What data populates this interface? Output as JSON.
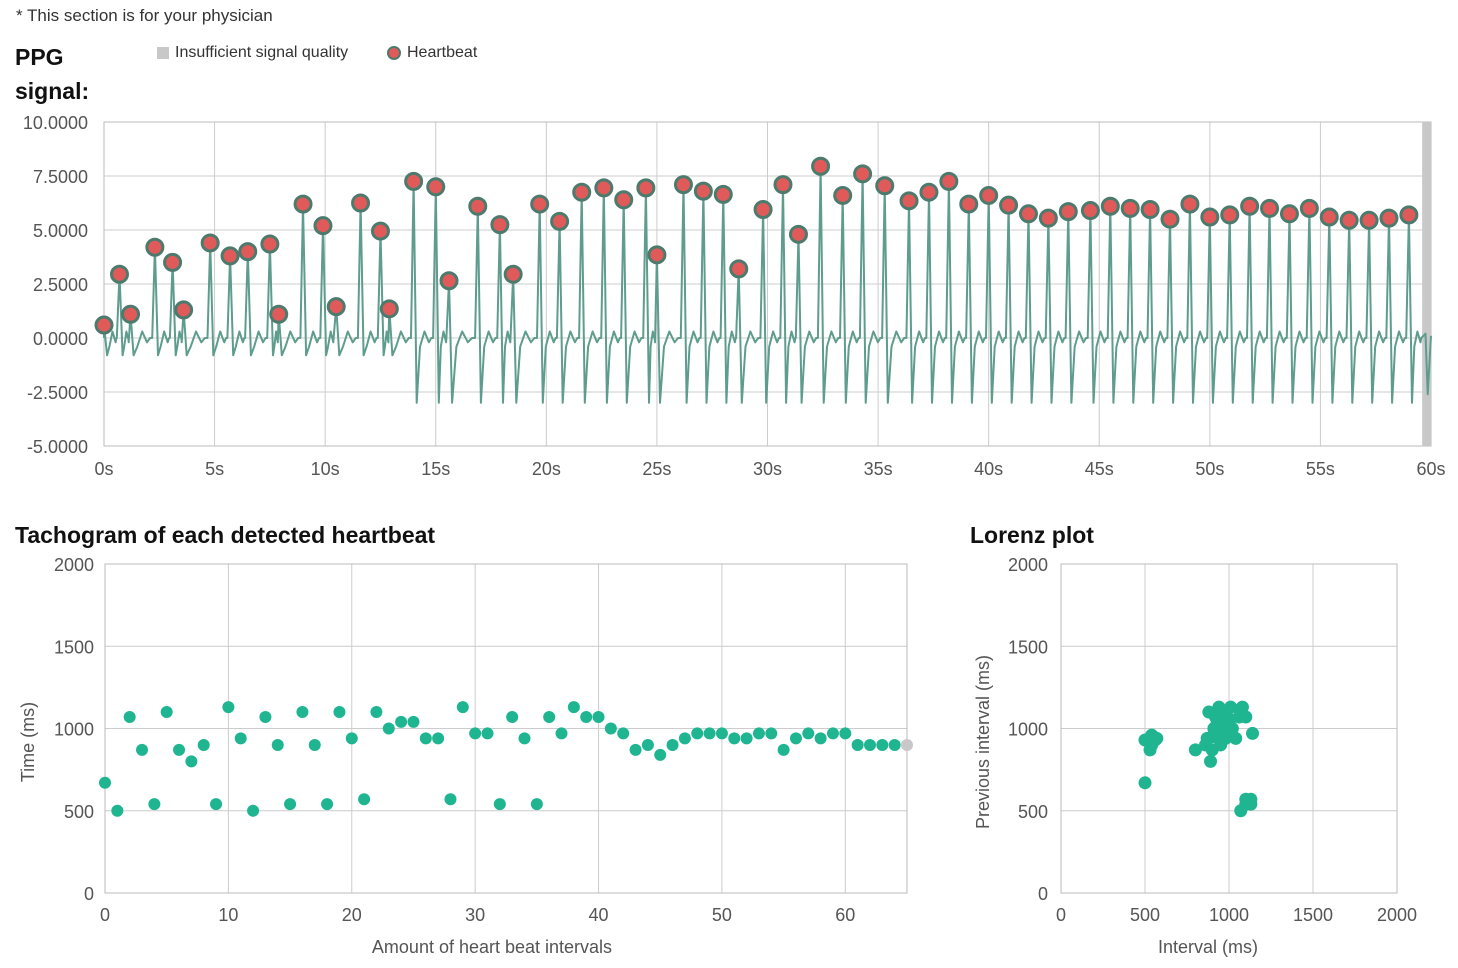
{
  "note": "* This section is for your physician",
  "ppg_title_line1": "PPG",
  "ppg_title_line2": "signal:",
  "legend": {
    "insufficient": "Insufficient signal quality",
    "heartbeat": "Heartbeat"
  },
  "tachogram_title": "Tachogram of each detected heartbeat",
  "lorenz_title": "Lorenz plot",
  "colors": {
    "signal": "#5e9c8e",
    "heartbeat_fill": "#e05a5a",
    "heartbeat_stroke": "#4c7b6e",
    "points": "#1fb591",
    "grid": "#cccccc",
    "insufficient": "#c8c8c8",
    "last_point": "#c8c8c8"
  },
  "chart_data": [
    {
      "type": "line",
      "name": "PPG signal",
      "xlabel": "",
      "ylabel": "",
      "xlim": [
        0,
        60
      ],
      "ylim": [
        -5,
        10
      ],
      "x_ticks": [
        0,
        5,
        10,
        15,
        20,
        25,
        30,
        35,
        40,
        45,
        50,
        55,
        60
      ],
      "x_tick_labels": [
        "0s",
        "5s",
        "10s",
        "15s",
        "20s",
        "25s",
        "30s",
        "35s",
        "40s",
        "45s",
        "50s",
        "55s",
        "60s"
      ],
      "y_ticks": [
        10,
        7.5,
        5,
        2.5,
        0,
        -2.5,
        -5
      ],
      "y_tick_labels": [
        "10.0000",
        "7.5000",
        "5.0000",
        "2.5000",
        "0.0000",
        "-2.5000",
        "-5.0000"
      ],
      "grid": true,
      "insufficient_signal_region": [
        59.6,
        60
      ],
      "heartbeats": [
        {
          "t": 0.0,
          "v": 0.6
        },
        {
          "t": 0.7,
          "v": 2.95
        },
        {
          "t": 1.2,
          "v": 1.1
        },
        {
          "t": 2.3,
          "v": 4.2
        },
        {
          "t": 3.1,
          "v": 3.5
        },
        {
          "t": 3.6,
          "v": 1.3
        },
        {
          "t": 4.8,
          "v": 4.4
        },
        {
          "t": 5.7,
          "v": 3.8
        },
        {
          "t": 6.5,
          "v": 4.0
        },
        {
          "t": 7.5,
          "v": 4.35
        },
        {
          "t": 7.9,
          "v": 1.1
        },
        {
          "t": 9.0,
          "v": 6.2
        },
        {
          "t": 9.9,
          "v": 5.2
        },
        {
          "t": 10.5,
          "v": 1.45
        },
        {
          "t": 11.6,
          "v": 6.25
        },
        {
          "t": 12.5,
          "v": 4.95
        },
        {
          "t": 12.9,
          "v": 1.35
        },
        {
          "t": 14.0,
          "v": 7.25
        },
        {
          "t": 15.0,
          "v": 7.0
        },
        {
          "t": 15.6,
          "v": 2.65
        },
        {
          "t": 16.9,
          "v": 6.1
        },
        {
          "t": 17.9,
          "v": 5.25
        },
        {
          "t": 18.5,
          "v": 2.95
        },
        {
          "t": 19.7,
          "v": 6.2
        },
        {
          "t": 20.6,
          "v": 5.4
        },
        {
          "t": 21.6,
          "v": 6.75
        },
        {
          "t": 22.6,
          "v": 6.95
        },
        {
          "t": 23.5,
          "v": 6.4
        },
        {
          "t": 24.5,
          "v": 6.95
        },
        {
          "t": 25.0,
          "v": 3.85
        },
        {
          "t": 26.2,
          "v": 7.1
        },
        {
          "t": 27.1,
          "v": 6.8
        },
        {
          "t": 28.0,
          "v": 6.65
        },
        {
          "t": 28.7,
          "v": 3.2
        },
        {
          "t": 29.8,
          "v": 5.95
        },
        {
          "t": 30.7,
          "v": 7.1
        },
        {
          "t": 31.4,
          "v": 4.8
        },
        {
          "t": 32.4,
          "v": 7.95
        },
        {
          "t": 33.4,
          "v": 6.6
        },
        {
          "t": 34.3,
          "v": 7.6
        },
        {
          "t": 35.3,
          "v": 7.05
        },
        {
          "t": 36.4,
          "v": 6.35
        },
        {
          "t": 37.3,
          "v": 6.75
        },
        {
          "t": 38.2,
          "v": 7.25
        },
        {
          "t": 39.1,
          "v": 6.2
        },
        {
          "t": 40.0,
          "v": 6.6
        },
        {
          "t": 40.9,
          "v": 6.15
        },
        {
          "t": 41.8,
          "v": 5.75
        },
        {
          "t": 42.7,
          "v": 5.55
        },
        {
          "t": 43.6,
          "v": 5.85
        },
        {
          "t": 44.6,
          "v": 5.9
        },
        {
          "t": 45.5,
          "v": 6.1
        },
        {
          "t": 46.4,
          "v": 6.0
        },
        {
          "t": 47.3,
          "v": 5.95
        },
        {
          "t": 48.2,
          "v": 5.5
        },
        {
          "t": 49.1,
          "v": 6.2
        },
        {
          "t": 50.0,
          "v": 5.6
        },
        {
          "t": 50.9,
          "v": 5.7
        },
        {
          "t": 51.8,
          "v": 6.1
        },
        {
          "t": 52.7,
          "v": 6.0
        },
        {
          "t": 53.6,
          "v": 5.75
        },
        {
          "t": 54.5,
          "v": 6.0
        },
        {
          "t": 55.4,
          "v": 5.6
        },
        {
          "t": 56.3,
          "v": 5.45
        },
        {
          "t": 57.2,
          "v": 5.45
        },
        {
          "t": 58.1,
          "v": 5.55
        },
        {
          "t": 59.0,
          "v": 5.7
        }
      ]
    },
    {
      "type": "scatter",
      "name": "Tachogram",
      "title": "Tachogram of each detected heartbeat",
      "xlabel": "Amount of heart beat intervals",
      "ylabel": "Time (ms)",
      "xlim": [
        0,
        65
      ],
      "ylim": [
        0,
        2000
      ],
      "x_ticks": [
        0,
        10,
        20,
        30,
        40,
        50,
        60
      ],
      "y_ticks": [
        0,
        500,
        1000,
        1500,
        2000
      ],
      "grid": true,
      "y": [
        670,
        500,
        1070,
        870,
        540,
        1100,
        870,
        800,
        900,
        540,
        1130,
        940,
        500,
        1070,
        900,
        540,
        1100,
        900,
        540,
        1100,
        940,
        570,
        1100,
        1000,
        1040,
        1040,
        940,
        940,
        570,
        1130,
        970,
        970,
        540,
        1070,
        940,
        540,
        1070,
        970,
        1130,
        1070,
        1070,
        1000,
        970,
        870,
        900,
        840,
        900,
        940,
        970,
        970,
        970,
        940,
        940,
        970,
        970,
        870,
        940,
        970,
        940,
        970,
        970,
        900,
        900,
        900,
        900,
        900
      ],
      "last_point_gray": true
    },
    {
      "type": "scatter",
      "name": "Lorenz plot",
      "title": "Lorenz plot",
      "xlabel": "Interval (ms)",
      "ylabel": "Previous interval (ms)",
      "xlim": [
        0,
        2000
      ],
      "ylim": [
        0,
        2000
      ],
      "x_ticks": [
        0,
        500,
        1000,
        1500,
        2000
      ],
      "y_ticks": [
        0,
        500,
        1000,
        1500,
        2000
      ],
      "grid": true,
      "points": [
        [
          500,
          670
        ],
        [
          500,
          930
        ],
        [
          530,
          870
        ],
        [
          540,
          900
        ],
        [
          540,
          960
        ],
        [
          570,
          940
        ],
        [
          560,
          930
        ],
        [
          800,
          870
        ],
        [
          860,
          900
        ],
        [
          870,
          940
        ],
        [
          880,
          1100
        ],
        [
          890,
          800
        ],
        [
          900,
          870
        ],
        [
          900,
          950
        ],
        [
          910,
          1000
        ],
        [
          920,
          1070
        ],
        [
          930,
          1040
        ],
        [
          940,
          1130
        ],
        [
          940,
          940
        ],
        [
          950,
          900
        ],
        [
          960,
          1000
        ],
        [
          970,
          1100
        ],
        [
          970,
          970
        ],
        [
          980,
          940
        ],
        [
          990,
          1070
        ],
        [
          1000,
          1040
        ],
        [
          1000,
          970
        ],
        [
          1010,
          1130
        ],
        [
          1020,
          1000
        ],
        [
          1040,
          940
        ],
        [
          1060,
          1070
        ],
        [
          1070,
          1100
        ],
        [
          1080,
          1130
        ],
        [
          1070,
          500
        ],
        [
          1100,
          540
        ],
        [
          1100,
          570
        ],
        [
          1130,
          540
        ],
        [
          1130,
          570
        ],
        [
          1140,
          970
        ],
        [
          1100,
          1070
        ]
      ]
    }
  ]
}
